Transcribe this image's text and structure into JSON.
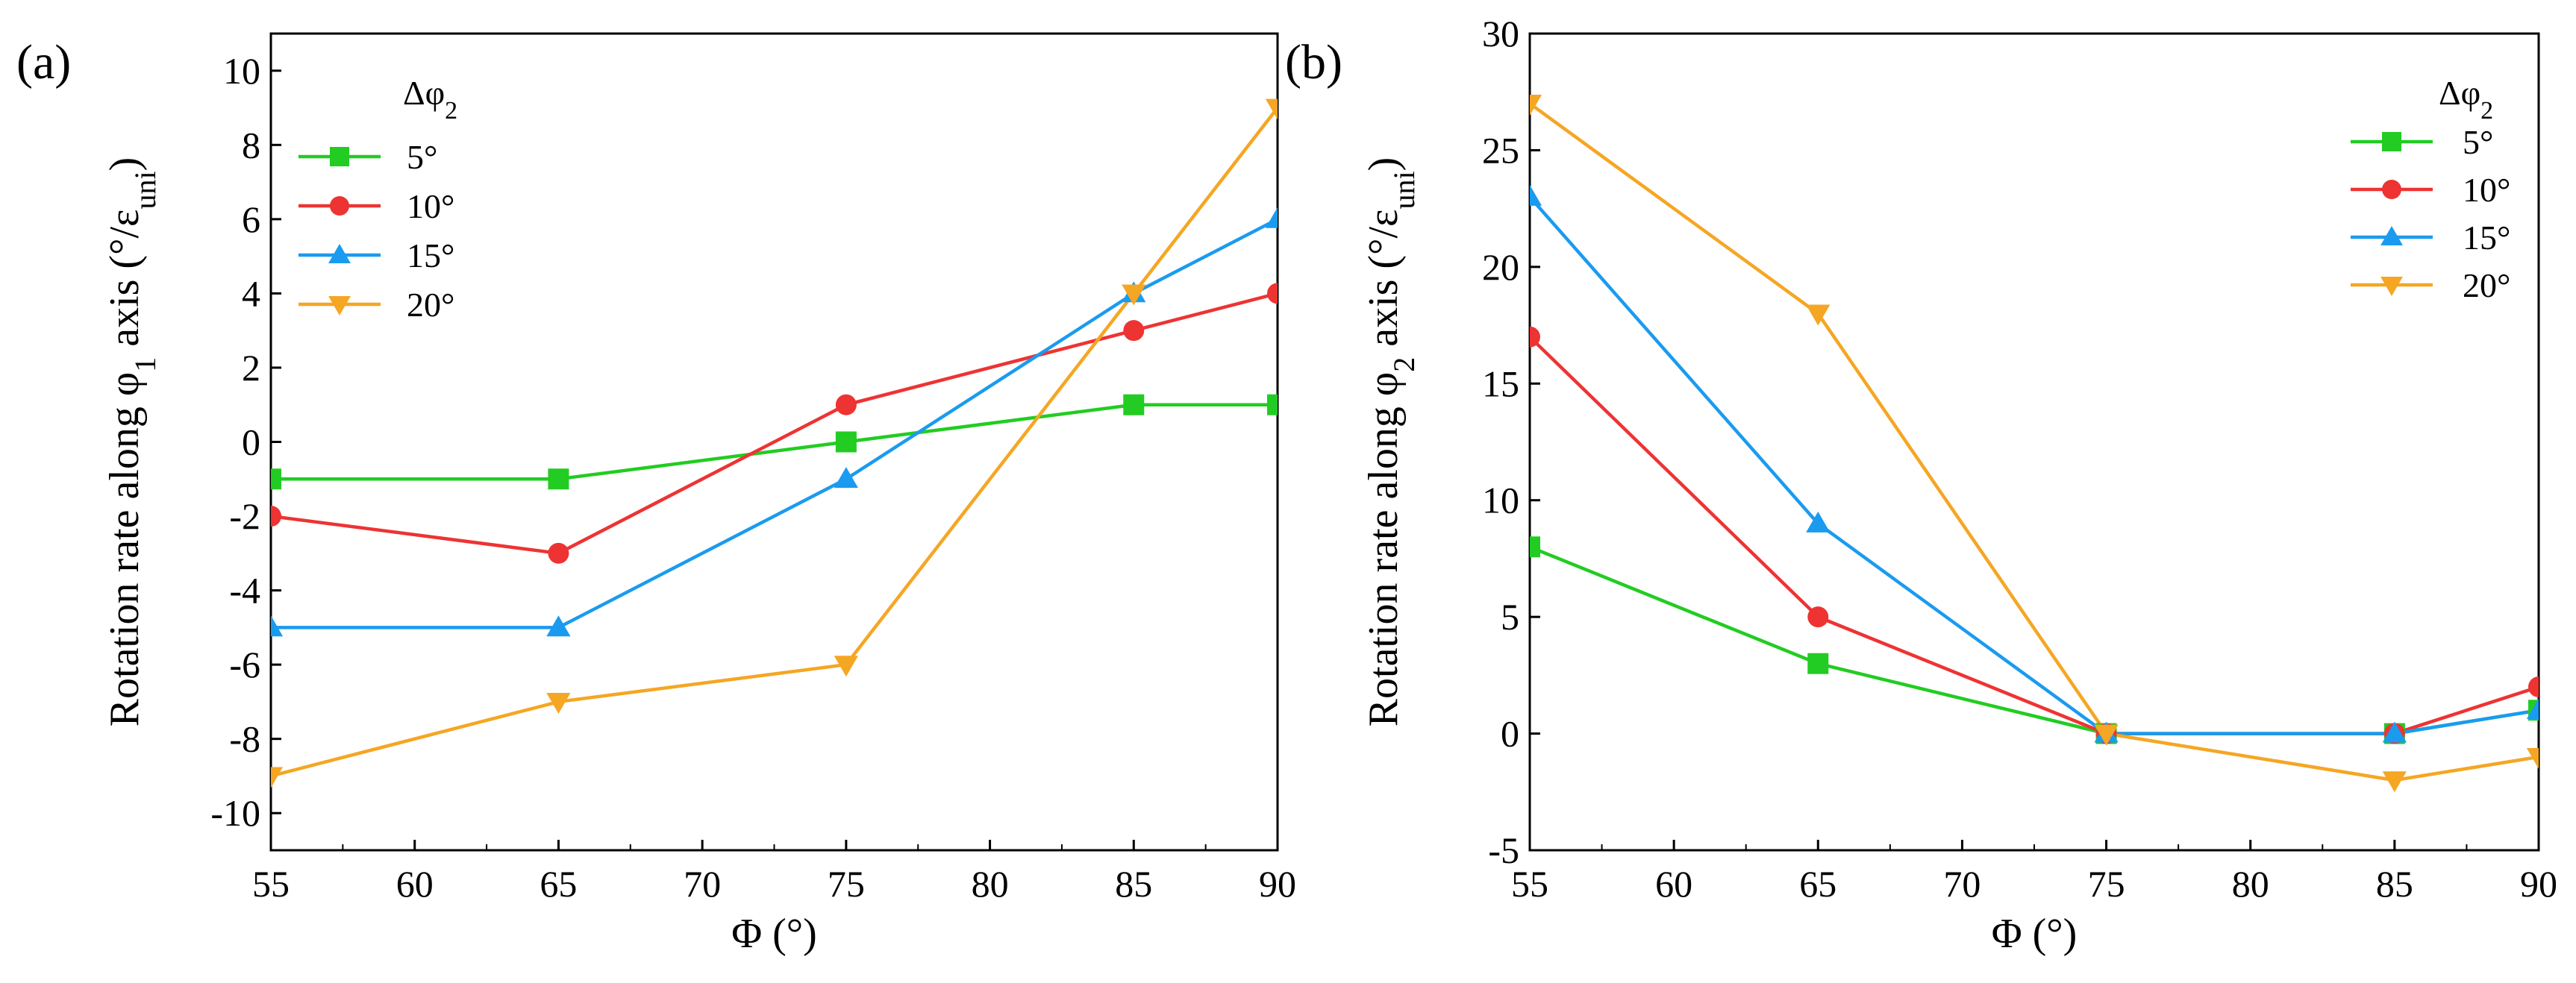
{
  "chart_data": [
    {
      "panel_label": "(a)",
      "type": "line",
      "xlabel": "Φ (°)",
      "ylabel": {
        "before": "Rotation rate along φ",
        "sub": "1",
        "after": " axis (°/ε",
        "sub2": "uni",
        "end": ")"
      },
      "x_ticks": [
        "55",
        "60",
        "65",
        "70",
        "75",
        "80",
        "85",
        "90"
      ],
      "y_ticks": [
        "-10",
        "-8",
        "-6",
        "-4",
        "-2",
        "0",
        "2",
        "4",
        "6",
        "8",
        "10"
      ],
      "xlim": [
        55,
        90
      ],
      "ylim": [
        -11,
        11
      ],
      "x": [
        55,
        65,
        75,
        85,
        90
      ],
      "legend_title": {
        "main": "Δφ",
        "sub": "2"
      },
      "legend_position": "top-left",
      "series": [
        {
          "name": "5°",
          "marker": "square",
          "color": "#22cc22",
          "values": [
            -1,
            -1,
            0,
            1,
            1
          ]
        },
        {
          "name": "10°",
          "marker": "circle",
          "color": "#ee3333",
          "values": [
            -2,
            -3,
            1,
            3,
            4
          ]
        },
        {
          "name": "15°",
          "marker": "triangle-up",
          "color": "#1a9bef",
          "values": [
            -5,
            -5,
            -1,
            4,
            6
          ]
        },
        {
          "name": "20°",
          "marker": "triangle-down",
          "color": "#f5a623",
          "values": [
            -9,
            -7,
            -6,
            4,
            9
          ]
        }
      ]
    },
    {
      "panel_label": "(b)",
      "type": "line",
      "xlabel": "Φ (°)",
      "ylabel": {
        "before": "Rotation rate along φ",
        "sub": "2",
        "after": " axis (°/ε",
        "sub2": "uni",
        "end": ")"
      },
      "x_ticks": [
        "55",
        "60",
        "65",
        "70",
        "75",
        "80",
        "85",
        "90"
      ],
      "y_ticks": [
        "-5",
        "0",
        "5",
        "10",
        "15",
        "20",
        "25",
        "30"
      ],
      "xlim": [
        55,
        90
      ],
      "ylim": [
        -5,
        30
      ],
      "x": [
        55,
        65,
        75,
        85,
        90
      ],
      "legend_title": {
        "main": "Δφ",
        "sub": "2"
      },
      "legend_position": "top-right",
      "series": [
        {
          "name": "5°",
          "marker": "square",
          "color": "#22cc22",
          "values": [
            8,
            3,
            0,
            0,
            1
          ]
        },
        {
          "name": "10°",
          "marker": "circle",
          "color": "#ee3333",
          "values": [
            17,
            5,
            0,
            0,
            2
          ]
        },
        {
          "name": "15°",
          "marker": "triangle-up",
          "color": "#1a9bef",
          "values": [
            23,
            9,
            0,
            0,
            1
          ]
        },
        {
          "name": "20°",
          "marker": "triangle-down",
          "color": "#f5a623",
          "values": [
            27,
            18,
            0,
            -2,
            -1
          ]
        }
      ]
    }
  ]
}
